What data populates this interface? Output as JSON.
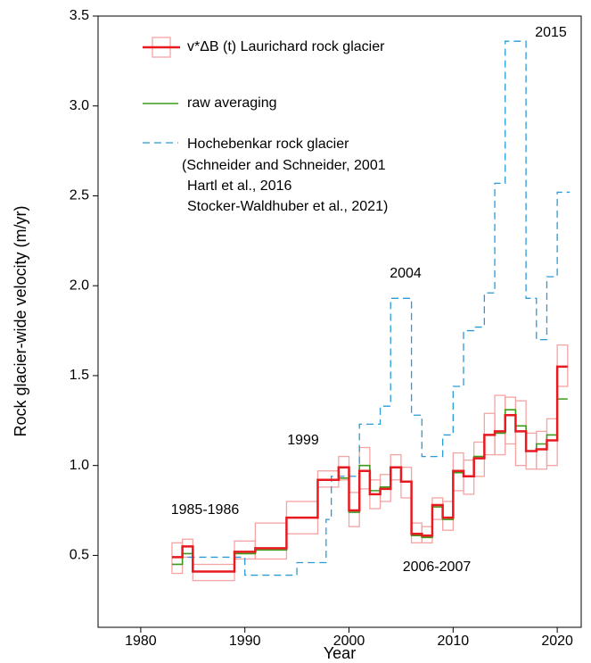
{
  "chart_data": {
    "type": "step",
    "xlabel": "Year",
    "ylabel": "Rock glacier-wide velocity (m/yr)",
    "xlim": [
      1975.9,
      2022.3
    ],
    "ylim": [
      0.1,
      3.5
    ],
    "xticks": [
      1980,
      1990,
      2000,
      2010,
      2020
    ],
    "yticks": [
      0.5,
      {
        "value": 1,
        "label": "1.0"
      },
      1.5,
      {
        "value": 2,
        "label": "2.0"
      },
      2.5,
      {
        "value": 3,
        "label": "3.0"
      },
      3.5
    ],
    "series": [
      {
        "name": "v*ΔB (t)   Laurichard rock glacier",
        "color": "#e8191f",
        "box_color": "#f5a3a3",
        "x": [
          1983,
          1984,
          1985,
          1989,
          1991,
          1994,
          1997,
          1999,
          2000,
          2001,
          2002,
          2003,
          2004,
          2005,
          2006,
          2007,
          2008,
          2009,
          2010,
          2011,
          2012,
          2013,
          2014,
          2015,
          2016,
          2017,
          2018,
          2019,
          2020,
          2021
        ],
        "values": [
          0.49,
          0.55,
          0.41,
          0.52,
          0.54,
          0.71,
          0.92,
          0.99,
          0.75,
          0.97,
          0.84,
          0.87,
          0.99,
          0.91,
          0.62,
          0.61,
          0.78,
          0.71,
          0.97,
          0.94,
          1.04,
          1.17,
          1.19,
          1.28,
          1.19,
          1.08,
          1.09,
          1.14,
          1.55,
          1.55
        ],
        "lower": [
          0.4,
          0.49,
          0.36,
          0.48,
          0.48,
          0.62,
          0.88,
          0.92,
          0.66,
          0.87,
          0.76,
          0.8,
          0.92,
          0.82,
          0.57,
          0.57,
          0.7,
          0.64,
          0.86,
          0.84,
          0.94,
          1.06,
          1.06,
          1.12,
          1.0,
          0.98,
          0.98,
          1.0,
          1.44,
          null
        ],
        "upper": [
          0.57,
          0.59,
          0.45,
          0.58,
          0.68,
          0.8,
          0.97,
          1.05,
          0.85,
          1.1,
          0.92,
          0.95,
          1.06,
          0.99,
          0.68,
          0.66,
          0.82,
          0.8,
          1.07,
          1.03,
          1.13,
          1.29,
          1.39,
          1.38,
          1.36,
          1.18,
          1.19,
          1.26,
          1.67,
          null
        ]
      },
      {
        "name": "raw averaging",
        "color": "#3f9a1c",
        "x": [
          1983,
          1984,
          1985,
          1989,
          1991,
          1994,
          1997,
          1999,
          2000,
          2001,
          2002,
          2003,
          2004,
          2005,
          2006,
          2007,
          2008,
          2009,
          2010,
          2011,
          2012,
          2013,
          2014,
          2015,
          2016,
          2017,
          2018,
          2019,
          2020,
          2021
        ],
        "values": [
          0.45,
          0.51,
          0.41,
          0.51,
          0.53,
          0.71,
          0.92,
          0.93,
          0.74,
          1.0,
          0.86,
          0.88,
          0.99,
          0.91,
          0.61,
          0.6,
          0.77,
          0.7,
          0.96,
          0.94,
          1.05,
          1.17,
          1.18,
          1.31,
          1.22,
          1.08,
          1.12,
          1.17,
          1.37,
          1.37
        ]
      },
      {
        "name": "Hochebenkar rock glacier",
        "color": "#2a9ad8",
        "dashed": true,
        "x": [
          1984.5,
          1990,
          1995,
          1997.8,
          1998.3,
          2001,
          2003,
          2004,
          2006,
          2007,
          2009,
          2010,
          2011,
          2012,
          2013,
          2014,
          2015,
          2017,
          2018,
          2019,
          2020,
          2021.2
        ],
        "values": [
          0.49,
          0.39,
          0.46,
          0.7,
          0.94,
          1.23,
          1.33,
          1.93,
          1.28,
          1.05,
          1.17,
          1.44,
          1.75,
          1.77,
          1.96,
          2.57,
          3.36,
          1.93,
          1.7,
          2.05,
          2.52,
          2.52
        ]
      }
    ],
    "legend_note": [
      "(Schneider and Schneider, 2001",
      "Hartl et al., 2016",
      "Stocker-Waldhuber et al., 2021)"
    ],
    "annotations": [
      "2015",
      "2004",
      "1999",
      "1985-1986",
      "2006-2007"
    ]
  }
}
